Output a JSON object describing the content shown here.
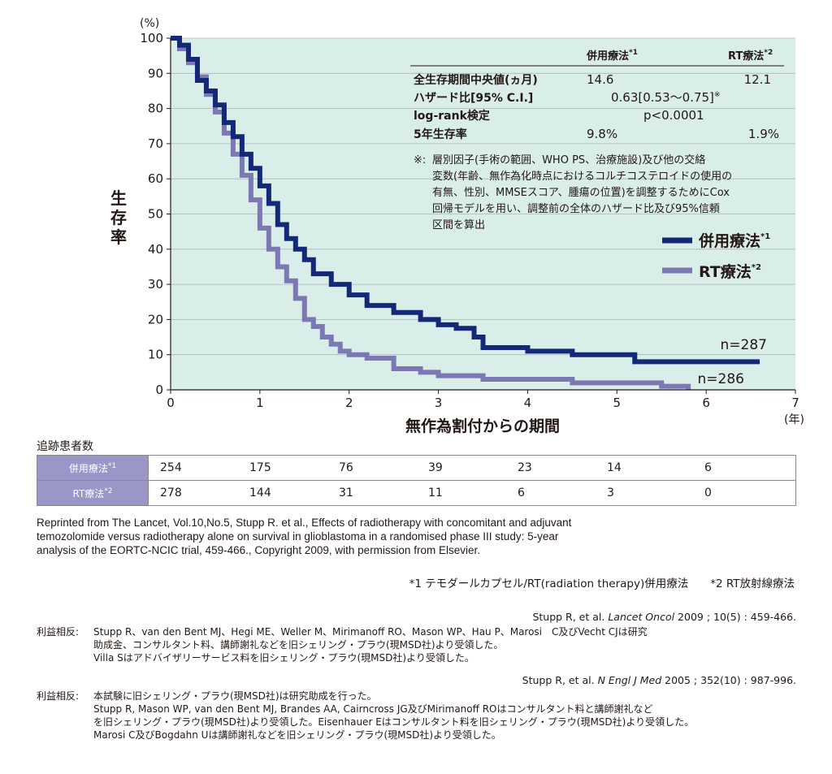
{
  "colors": {
    "combo": "#14287a",
    "rt": "#7b78b4",
    "plot_bg": "#d9ede9",
    "table_label_bg": "#9a97c8"
  },
  "chart_data": {
    "type": "line",
    "title": "",
    "ylabel": "生存率",
    "yunit": "(%)",
    "xlabel": "無作為割付からの期間",
    "xunit": "(年)",
    "xlim": [
      0,
      7
    ],
    "ylim": [
      0,
      100
    ],
    "xticks": [
      "0",
      "1",
      "2",
      "3",
      "4",
      "5",
      "6",
      "7"
    ],
    "yticks": [
      "0",
      "10",
      "20",
      "30",
      "40",
      "50",
      "60",
      "70",
      "80",
      "90",
      "100"
    ],
    "grid": true,
    "legend_position": "right-middle",
    "series": [
      {
        "name": "併用療法",
        "sup": "*1",
        "n_label": "n=287",
        "x": [
          0,
          0.1,
          0.2,
          0.3,
          0.4,
          0.5,
          0.6,
          0.7,
          0.8,
          0.9,
          1.0,
          1.1,
          1.2,
          1.3,
          1.4,
          1.5,
          1.6,
          1.8,
          2.0,
          2.2,
          2.5,
          2.8,
          3.0,
          3.2,
          3.4,
          3.5,
          3.7,
          4.0,
          4.3,
          4.5,
          4.8,
          5.0,
          5.2,
          5.5,
          6.0,
          6.6
        ],
        "values": [
          100,
          98,
          94,
          88,
          85,
          81,
          76,
          72,
          67,
          63,
          58,
          53,
          47,
          43,
          40,
          37,
          33,
          30,
          27,
          24,
          22,
          20,
          18.5,
          17.5,
          15,
          12,
          12,
          11,
          11,
          10,
          10,
          10,
          8,
          8,
          8,
          8
        ]
      },
      {
        "name": "RT療法",
        "sup": "*2",
        "n_label": "n=286",
        "x": [
          0,
          0.1,
          0.2,
          0.3,
          0.4,
          0.5,
          0.6,
          0.7,
          0.8,
          0.9,
          1.0,
          1.1,
          1.2,
          1.3,
          1.4,
          1.5,
          1.6,
          1.7,
          1.8,
          1.9,
          2.0,
          2.2,
          2.5,
          2.8,
          3.0,
          3.3,
          3.5,
          4.0,
          4.5,
          5.0,
          5.5,
          5.8
        ],
        "values": [
          100,
          97,
          93,
          89,
          84,
          79,
          73,
          67,
          61,
          54,
          46,
          40,
          35,
          31,
          26,
          20,
          18,
          15,
          13,
          11,
          10,
          9,
          6,
          5,
          4,
          4,
          3,
          3,
          2,
          2,
          1,
          0
        ]
      }
    ],
    "stats_table": {
      "col_headers": [
        "併用療法",
        "RT療法"
      ],
      "col_sups": [
        "*1",
        "*2"
      ],
      "rows": [
        {
          "label": "全生存期間中央値(ヵ月)",
          "v1": "14.6",
          "v2": "12.1"
        },
        {
          "label": "ハザード比[95% C.I.]",
          "span": "0.63[0.53〜0.75]",
          "mark": "※"
        },
        {
          "label": "log-rank検定",
          "span": "p<0.0001"
        },
        {
          "label": "5年生存率",
          "v1": "9.8%",
          "v2": "1.9%"
        }
      ],
      "note_mark": "※:",
      "note_lines": [
        "層別因子(手術の範囲、WHO PS、治療施設)及び他の交絡",
        "変数(年齢、無作為化時点におけるコルチコステロイドの使用の",
        "有無、性別、MMSEスコア、腫瘍の位置)を調整するためにCox",
        "回帰モデルを用い、調整前の全体のハザード比及び95%信頼",
        "区間を算出"
      ]
    }
  },
  "risk_table": {
    "title": "追跡患者数",
    "rows": [
      {
        "label": "併用療法",
        "sup": "*1",
        "values": [
          "254",
          "175",
          "76",
          "39",
          "23",
          "14",
          "6"
        ]
      },
      {
        "label": "RT療法",
        "sup": "*2",
        "values": [
          "278",
          "144",
          "31",
          "11",
          "6",
          "3",
          "0"
        ]
      }
    ]
  },
  "citation": [
    "Reprinted from The Lancet, Vol.10,No.5, Stupp R. et al., Effects of radiotherapy with concomitant and adjuvant",
    "temozolomide versus radiotherapy alone on survival in glioblastoma in a randomised phase III study: 5-year",
    "analysis of the EORTC-NCIC trial, 459-466., Copyright 2009, with permission from Elsevier."
  ],
  "footnote": "*1 テモダールカプセル/RT(radiation therapy)併用療法　　*2 RT放射線療法",
  "references": [
    {
      "cite_pre": "Stupp R, et al. ",
      "journal": "Lancet Oncol",
      "cite_post": " 2009 ; 10(5) : 459-466.",
      "coi_label": "利益相反:",
      "coi_lines": [
        "Stupp R、van den Bent MJ、Hegi ME、Weller M、Mirimanoff RO、Mason WP、Hau P、Marosi　C及びVecht CJは研究",
        "助成金、コンサルタント料、講師謝礼などを旧シェリング・プラウ(現MSD社)より受領した。",
        "Villa Sはアドバイザリーサービス料を旧シェリング・プラウ(現MSD社)より受領した。"
      ]
    },
    {
      "cite_pre": "Stupp R, et al. ",
      "journal": "N Engl J Med",
      "cite_post": " 2005 ; 352(10) : 987-996.",
      "coi_label": "利益相反:",
      "coi_lines": [
        "本試験に旧シェリング・プラウ(現MSD社)は研究助成を行った。",
        "Stupp R, Mason WP, van den Bent MJ, Brandes AA, Cairncross JG及びMirimanoff ROはコンサルタント料と講師謝礼など",
        "を旧シェリング・プラウ(現MSD社)より受領した。Eisenhauer Eはコンサルタント料を旧シェリング・プラウ(現MSD社)より受領した。",
        "Marosi C及びBogdahn Uは講師謝礼などを旧シェリング・プラウ(現MSD社)より受領した。"
      ]
    }
  ]
}
